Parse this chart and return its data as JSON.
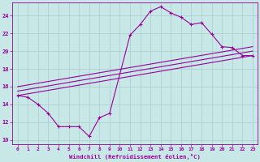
{
  "background_color": "#c8e8e8",
  "line_color": "#990099",
  "grid_color": "#aacccc",
  "xlabel": "Windchill (Refroidissement éolien,°C)",
  "ylim": [
    9.5,
    25.5
  ],
  "xlim": [
    -0.5,
    23.5
  ],
  "yticks": [
    10,
    12,
    14,
    16,
    18,
    20,
    22,
    24
  ],
  "xticks": [
    0,
    1,
    2,
    3,
    4,
    5,
    6,
    7,
    8,
    9,
    10,
    11,
    12,
    13,
    14,
    15,
    16,
    17,
    18,
    19,
    20,
    21,
    22,
    23
  ],
  "curve_x": [
    0,
    1,
    2,
    3,
    4,
    5,
    6,
    7,
    8,
    9,
    11,
    12,
    13,
    14,
    15,
    16,
    17,
    18,
    19,
    20,
    21,
    22,
    23
  ],
  "curve_y": [
    15.0,
    14.8,
    14.0,
    13.0,
    11.5,
    11.5,
    11.5,
    10.4,
    12.5,
    13.0,
    21.8,
    23.0,
    24.5,
    25.0,
    24.3,
    23.8,
    23.0,
    23.2,
    21.9,
    20.5,
    20.4,
    19.5,
    19.5
  ],
  "slope1_y0": 15.0,
  "slope1_y1": 19.5,
  "slope2_y0": 15.5,
  "slope2_y1": 20.0,
  "slope3_y0": 16.0,
  "slope3_y1": 20.5
}
